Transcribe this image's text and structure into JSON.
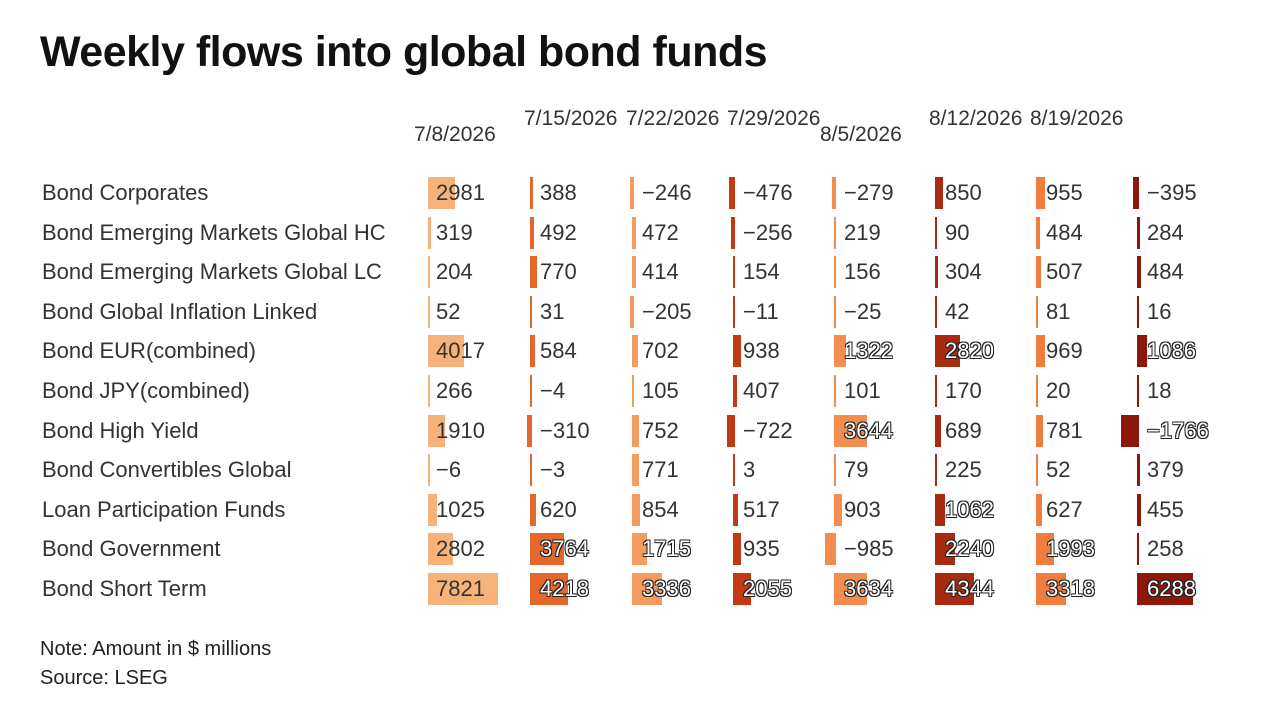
{
  "title": "Weekly flows into global bond funds",
  "note": "Note: Amount in $ millions",
  "source": "Source: LSEG",
  "column_colors": [
    "#f7b27a",
    "#e4672b",
    "#f49b60",
    "#c13a12",
    "#f28d50",
    "#a82a10",
    "#f07d3d",
    "#8e160a"
  ],
  "chart_data": {
    "type": "table",
    "title": "Weekly flows into global bond funds",
    "columns": [
      "7/8/2026",
      "7/15/2026",
      "7/22/2026",
      "7/29/2026",
      "8/5/2026",
      "8/12/2026",
      "8/19/2026",
      ""
    ],
    "rows": [
      {
        "label": "Bond Corporates",
        "values": [
          2981,
          388,
          -246,
          -476,
          -279,
          850,
          955,
          -395
        ]
      },
      {
        "label": "Bond Emerging Markets Global HC",
        "values": [
          319,
          492,
          472,
          -256,
          219,
          90,
          484,
          284
        ]
      },
      {
        "label": "Bond Emerging Markets Global LC",
        "values": [
          204,
          770,
          414,
          154,
          156,
          304,
          507,
          484
        ]
      },
      {
        "label": "Bond Global Inflation Linked",
        "values": [
          52,
          31,
          -205,
          -11,
          -25,
          42,
          81,
          16
        ]
      },
      {
        "label": "Bond EUR(combined)",
        "values": [
          4017,
          584,
          702,
          938,
          1322,
          2820,
          969,
          1086
        ]
      },
      {
        "label": "Bond JPY(combined)",
        "values": [
          266,
          -4,
          105,
          407,
          101,
          170,
          20,
          18
        ]
      },
      {
        "label": "Bond High Yield",
        "values": [
          1910,
          -310,
          752,
          -722,
          3644,
          689,
          781,
          -1766
        ]
      },
      {
        "label": "Bond Convertibles Global",
        "values": [
          -6,
          -3,
          771,
          3,
          79,
          225,
          52,
          379
        ]
      },
      {
        "label": "Loan Participation Funds",
        "values": [
          1025,
          620,
          854,
          517,
          903,
          1062,
          627,
          455
        ]
      },
      {
        "label": "Bond Government",
        "values": [
          2802,
          3764,
          1715,
          935,
          -985,
          2240,
          1993,
          258
        ]
      },
      {
        "label": "Bond Short Term",
        "values": [
          7821,
          4218,
          3336,
          2055,
          3634,
          4344,
          3318,
          6288
        ]
      }
    ],
    "value_unit": "$ millions"
  }
}
